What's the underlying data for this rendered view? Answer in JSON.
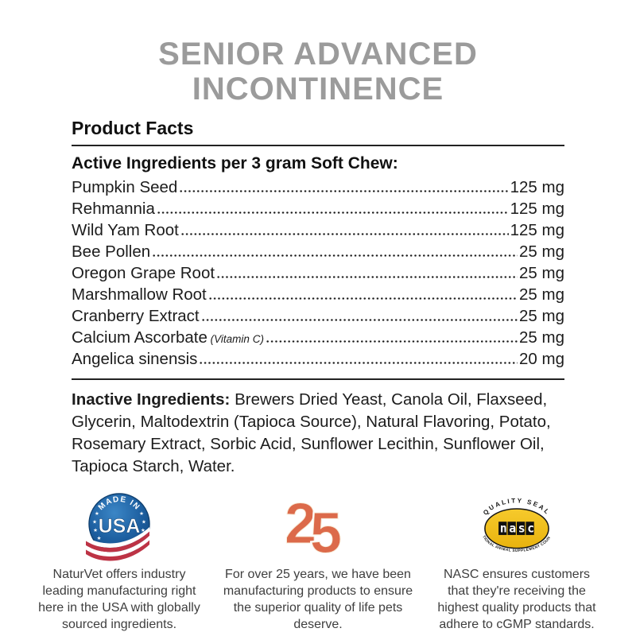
{
  "title": {
    "line1": "SENIOR ADVANCED",
    "line2": "INCONTINENCE"
  },
  "product_facts": {
    "heading": "Product Facts",
    "active_heading": "Active Ingredients per 3 gram Soft Chew:",
    "active_ingredients": [
      {
        "name": "Pumpkin Seed",
        "note": "",
        "amount": "125 mg"
      },
      {
        "name": "Rehmannia",
        "note": "",
        "amount": "125 mg"
      },
      {
        "name": "Wild Yam Root",
        "note": "",
        "amount": "125 mg"
      },
      {
        "name": "Bee Pollen",
        "note": "",
        "amount": "25 mg"
      },
      {
        "name": "Oregon Grape Root",
        "note": "",
        "amount": "25 mg"
      },
      {
        "name": "Marshmallow Root",
        "note": "",
        "amount": "25 mg"
      },
      {
        "name": "Cranberry Extract",
        "note": "",
        "amount": "25 mg"
      },
      {
        "name": "Calcium Ascorbate",
        "note": "(Vitamin C)",
        "amount": "25 mg"
      },
      {
        "name": "Angelica sinensis",
        "note": "",
        "amount": "20 mg"
      }
    ],
    "inactive_label": "Inactive Ingredients:",
    "inactive_text": "Brewers Dried Yeast, Canola Oil, Flaxseed, Glycerin, Maltodextrin (Tapioca Source), Natural Flavoring, Potato, Rosemary Extract, Sorbic Acid, Sunflower Lecithin, Sunflower Oil, Tapioca Starch, Water."
  },
  "badges": [
    {
      "seal": {
        "arc_top": "MADE IN",
        "main": "USA"
      },
      "caption": "NaturVet offers industry leading manufacturing right here in the USA with globally sourced ingredients."
    },
    {
      "seal": {
        "digits": [
          "2",
          "5"
        ]
      },
      "caption": "For over 25 years, we have been manufacturing products to ensure the superior quality of life pets deserve."
    },
    {
      "seal": {
        "arc_top": "QUALITY SEAL",
        "main": "nasc",
        "arc_bottom": "NATIONAL ANIMAL SUPPLEMENT COUNCIL"
      },
      "caption": "NASC ensures customers that they're receiving the highest quality products that adhere to cGMP standards."
    }
  ],
  "colors": {
    "title_gray": "#9b9b9b",
    "body_text": "#1c1c1c",
    "caption_gray": "#3e3e3e",
    "usa_blue": "#1d5fa0",
    "flag_red": "#bd3345",
    "anniversary_orange": "#dc6a4a",
    "nasc_gold": "#f3c11c"
  }
}
